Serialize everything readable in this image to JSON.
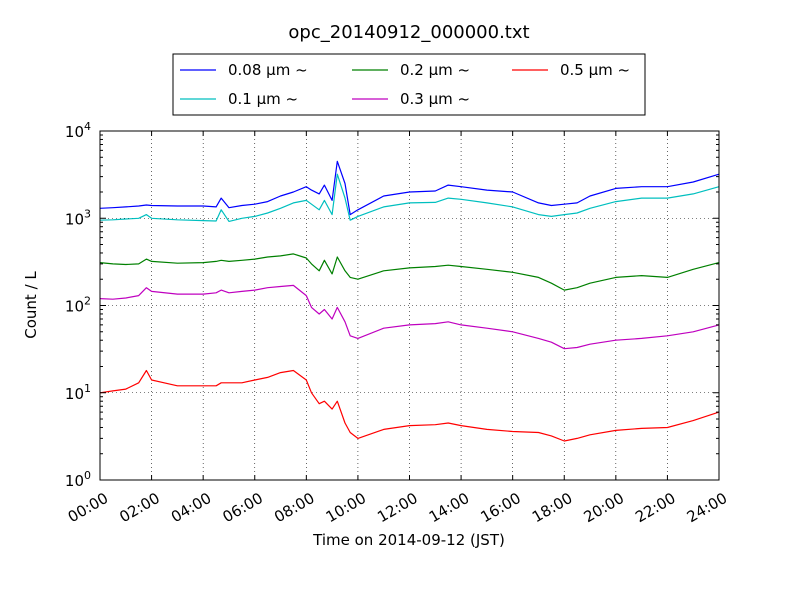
{
  "chart_data": {
    "type": "line",
    "title": "opc_20140912_000000.txt",
    "xlabel": "Time on 2014-09-12 (JST)",
    "ylabel": "Count / L",
    "x_unit": "hours",
    "xlim": [
      0,
      24
    ],
    "x_ticks": [
      0,
      2,
      4,
      6,
      8,
      10,
      12,
      14,
      16,
      18,
      20,
      22,
      24
    ],
    "x_tick_labels": [
      "00:00",
      "02:00",
      "04:00",
      "06:00",
      "08:00",
      "10:00",
      "12:00",
      "14:00",
      "16:00",
      "18:00",
      "20:00",
      "22:00",
      "24:00"
    ],
    "ylim": [
      1,
      10000
    ],
    "yscale": "log",
    "y_tick_labels": [
      {
        "base": "10",
        "exp": "0"
      },
      {
        "base": "10",
        "exp": "1"
      },
      {
        "base": "10",
        "exp": "2"
      },
      {
        "base": "10",
        "exp": "3"
      },
      {
        "base": "10",
        "exp": "4"
      }
    ],
    "grid": true,
    "legend_position": "top, above plot, 3 columns",
    "x": [
      0,
      0.5,
      1,
      1.5,
      1.8,
      2,
      3,
      4,
      4.5,
      4.7,
      5,
      5.5,
      6,
      6.5,
      7,
      7.5,
      8,
      8.2,
      8.5,
      8.7,
      9,
      9.2,
      9.5,
      9.7,
      10,
      11,
      12,
      13,
      13.5,
      14,
      15,
      16,
      17,
      17.5,
      18,
      18.5,
      19,
      20,
      21,
      22,
      23,
      24
    ],
    "series": [
      {
        "name": "0.08 μm ~",
        "color": "#0000ff",
        "values": [
          1300,
          1320,
          1350,
          1380,
          1420,
          1400,
          1380,
          1380,
          1350,
          1700,
          1320,
          1400,
          1450,
          1550,
          1800,
          2000,
          2300,
          2100,
          1900,
          2400,
          1600,
          4500,
          2500,
          1100,
          1250,
          1800,
          2000,
          2050,
          2400,
          2300,
          2100,
          2000,
          1500,
          1400,
          1450,
          1500,
          1800,
          2200,
          2300,
          2300,
          2600,
          3200
        ]
      },
      {
        "name": "0.1 μm ~",
        "color": "#00bfbf",
        "values": [
          950,
          960,
          980,
          1000,
          1100,
          1000,
          960,
          940,
          930,
          1250,
          920,
          1000,
          1050,
          1150,
          1300,
          1500,
          1600,
          1450,
          1250,
          1600,
          1100,
          3200,
          1700,
          950,
          1050,
          1350,
          1500,
          1520,
          1700,
          1650,
          1500,
          1350,
          1100,
          1050,
          1100,
          1150,
          1300,
          1550,
          1700,
          1700,
          1900,
          2300
        ]
      },
      {
        "name": "0.2 μm ~",
        "color": "#008000",
        "values": [
          310,
          300,
          295,
          300,
          340,
          320,
          305,
          310,
          320,
          330,
          320,
          330,
          340,
          360,
          370,
          390,
          350,
          300,
          250,
          330,
          230,
          360,
          250,
          210,
          200,
          250,
          270,
          280,
          290,
          280,
          260,
          240,
          210,
          180,
          150,
          160,
          180,
          210,
          220,
          210,
          260,
          310
        ]
      },
      {
        "name": "0.3 μm ~",
        "color": "#bf00bf",
        "values": [
          120,
          118,
          122,
          130,
          160,
          145,
          135,
          135,
          140,
          150,
          140,
          145,
          150,
          160,
          165,
          170,
          130,
          95,
          80,
          90,
          70,
          95,
          65,
          45,
          42,
          55,
          60,
          62,
          65,
          60,
          55,
          50,
          42,
          38,
          32,
          33,
          36,
          40,
          42,
          45,
          50,
          60
        ]
      },
      {
        "name": "0.5 μm ~",
        "color": "#ff0000",
        "values": [
          10,
          10.5,
          11,
          13,
          18,
          14,
          12,
          12,
          12,
          13,
          13,
          13,
          14,
          15,
          17,
          18,
          14,
          10,
          7.5,
          8,
          6.5,
          8,
          4.5,
          3.5,
          3,
          3.8,
          4.2,
          4.3,
          4.5,
          4.2,
          3.8,
          3.6,
          3.5,
          3.2,
          2.8,
          3,
          3.3,
          3.7,
          3.9,
          4,
          4.8,
          6
        ]
      }
    ]
  }
}
